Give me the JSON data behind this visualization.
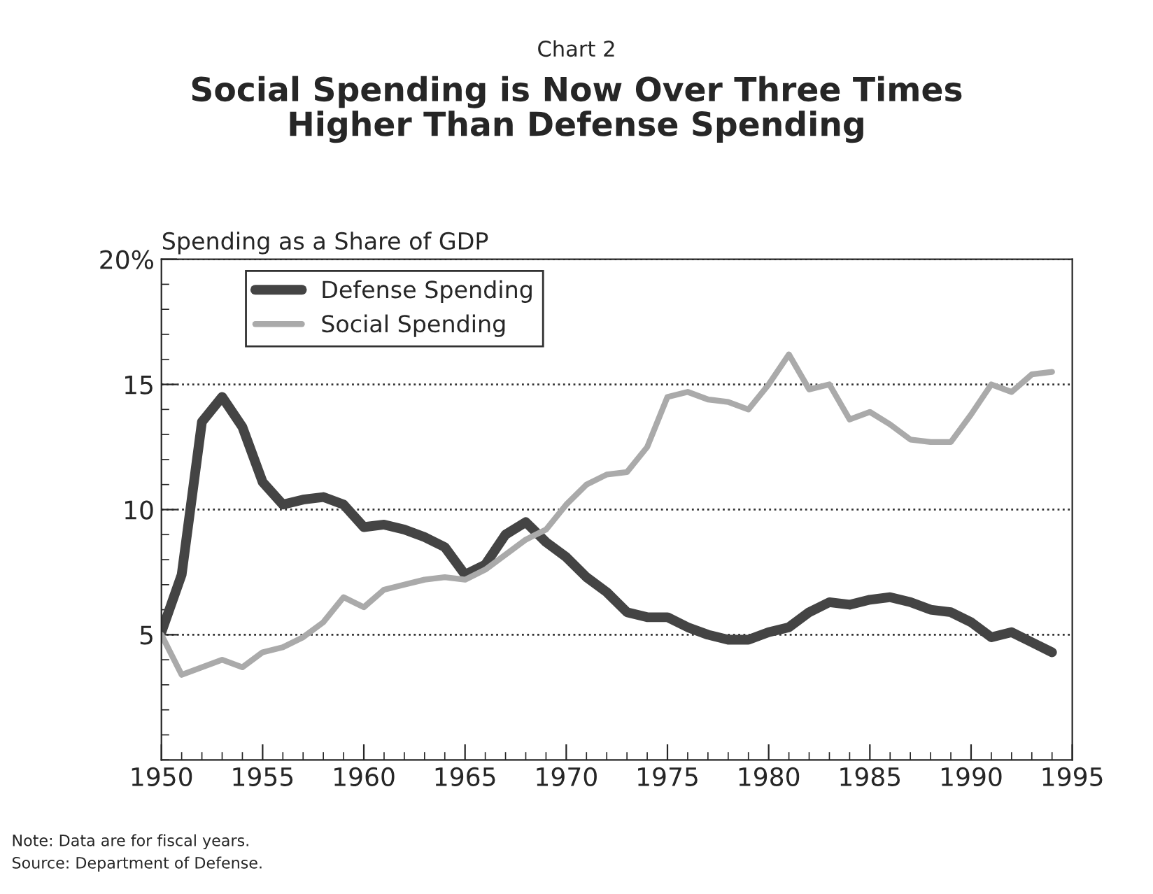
{
  "chart_data": {
    "type": "line",
    "title": "Chart 2",
    "subtitle": "Social Spending is Now Over Three Times\nHigher Than Defense Spending",
    "ylabel": "Spending as a Share of GDP",
    "x": [
      1950,
      1951,
      1952,
      1953,
      1954,
      1955,
      1956,
      1957,
      1958,
      1959,
      1960,
      1961,
      1962,
      1963,
      1964,
      1965,
      1966,
      1967,
      1968,
      1969,
      1970,
      1971,
      1972,
      1973,
      1974,
      1975,
      1976,
      1977,
      1978,
      1979,
      1980,
      1981,
      1982,
      1983,
      1984,
      1985,
      1986,
      1987,
      1988,
      1989,
      1990,
      1991,
      1992,
      1993,
      1994
    ],
    "series": [
      {
        "name": "Defense Spending",
        "color": "#444444",
        "values": [
          5.1,
          7.4,
          13.5,
          14.5,
          13.3,
          11.1,
          10.2,
          10.4,
          10.5,
          10.2,
          9.3,
          9.4,
          9.2,
          8.9,
          8.5,
          7.4,
          7.8,
          9.0,
          9.5,
          8.7,
          8.1,
          7.3,
          6.7,
          5.9,
          5.7,
          5.7,
          5.3,
          5.0,
          4.8,
          4.8,
          5.1,
          5.3,
          5.9,
          6.3,
          6.2,
          6.4,
          6.5,
          6.3,
          6.0,
          5.9,
          5.5,
          4.9,
          5.1,
          4.7,
          4.3
        ]
      },
      {
        "name": "Social Spending",
        "color": "#aaaaaa",
        "values": [
          5.0,
          3.4,
          3.7,
          4.0,
          3.7,
          4.3,
          4.5,
          4.9,
          5.5,
          6.5,
          6.1,
          6.8,
          7.0,
          7.2,
          7.3,
          7.2,
          7.6,
          8.2,
          8.8,
          9.2,
          10.2,
          11.0,
          11.4,
          11.5,
          12.5,
          14.5,
          14.7,
          14.4,
          14.3,
          14.0,
          15.0,
          16.2,
          14.8,
          15.0,
          13.6,
          13.9,
          13.4,
          12.8,
          12.7,
          12.7,
          13.8,
          15.0,
          14.7,
          15.4,
          15.5
        ]
      }
    ],
    "xlim": [
      1950,
      1995
    ],
    "xticks": [
      1950,
      1955,
      1960,
      1965,
      1970,
      1975,
      1980,
      1985,
      1990,
      1995
    ],
    "ylim": [
      0,
      20
    ],
    "yticks": [
      5,
      10,
      15,
      {
        "value": 20,
        "label": "20%"
      }
    ],
    "grid": "y",
    "legend": "top left",
    "marker": "none",
    "line_style": "solid",
    "annotations": [
      "Note: Data are for fiscal years.",
      "Source: Department of Defense."
    ]
  }
}
